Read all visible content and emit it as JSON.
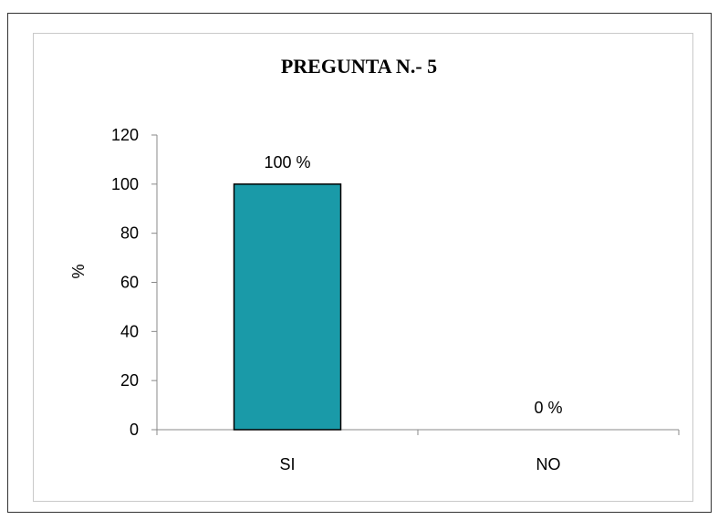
{
  "chart_data": {
    "type": "bar",
    "title": "PREGUNTA N.- 5",
    "xlabel": "",
    "ylabel": "%",
    "categories": [
      "SI",
      "NO"
    ],
    "values": [
      100,
      0
    ],
    "data_labels": [
      "100 %",
      "0 %"
    ],
    "ylim": [
      0,
      120
    ],
    "yticks": [
      0,
      20,
      40,
      60,
      80,
      100,
      120
    ],
    "grid": false,
    "bar_color": "#1a9aa8",
    "bar_edge_color": "#000000"
  }
}
